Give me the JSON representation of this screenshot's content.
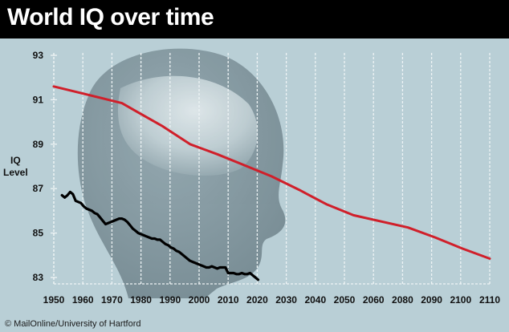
{
  "title": "World IQ over time",
  "credit": "MailOnline/University of Hartford",
  "colors": {
    "background": "#b9cfd6",
    "title_bar": "#000000",
    "projection_line": "#d01f2a",
    "measured_line": "#000000"
  },
  "chart_data": {
    "type": "line",
    "title": "World IQ over time",
    "xlabel": "",
    "ylabel": "IQ Level",
    "xlim": [
      1950,
      2110
    ],
    "ylim": [
      83,
      93
    ],
    "x_tick_labels": [
      "1950",
      "1960",
      "1970",
      "1980",
      "1990",
      "2000",
      "2010",
      "2020",
      "2030",
      "2040",
      "2050",
      "2060",
      "2080",
      "2090",
      "2100",
      "2110"
    ],
    "y_ticks": [
      83,
      85,
      87,
      89,
      91,
      93
    ],
    "grid": true,
    "series": [
      {
        "color": "#d01f2a",
        "points": [
          [
            1950,
            91.6
          ],
          [
            1960,
            91.3
          ],
          [
            1970,
            91.0
          ],
          [
            1975,
            90.85
          ],
          [
            1980,
            90.5
          ],
          [
            1990,
            89.8
          ],
          [
            2000,
            89.0
          ],
          [
            2010,
            88.55
          ],
          [
            2020,
            88.05
          ],
          [
            2030,
            87.55
          ],
          [
            2040,
            86.95
          ],
          [
            2050,
            86.3
          ],
          [
            2060,
            85.8
          ],
          [
            2080,
            85.25
          ],
          [
            2090,
            84.8
          ],
          [
            2100,
            84.3
          ],
          [
            2110,
            83.85
          ]
        ]
      },
      {
        "color": "#000000",
        "points": [
          [
            1953,
            86.7
          ],
          [
            1954,
            86.6
          ],
          [
            1955,
            86.7
          ],
          [
            1956,
            86.85
          ],
          [
            1957,
            86.75
          ],
          [
            1958,
            86.45
          ],
          [
            1959,
            86.4
          ],
          [
            1960,
            86.35
          ],
          [
            1961,
            86.2
          ],
          [
            1962,
            86.1
          ],
          [
            1963,
            86.05
          ],
          [
            1964,
            86.0
          ],
          [
            1965,
            85.9
          ],
          [
            1966,
            85.85
          ],
          [
            1967,
            85.7
          ],
          [
            1968,
            85.55
          ],
          [
            1969,
            85.4
          ],
          [
            1970,
            85.45
          ],
          [
            1971,
            85.5
          ],
          [
            1972,
            85.55
          ],
          [
            1973,
            85.6
          ],
          [
            1974,
            85.65
          ],
          [
            1975,
            85.65
          ],
          [
            1976,
            85.6
          ],
          [
            1977,
            85.5
          ],
          [
            1978,
            85.35
          ],
          [
            1979,
            85.2
          ],
          [
            1980,
            85.1
          ],
          [
            1981,
            85.0
          ],
          [
            1982,
            84.95
          ],
          [
            1983,
            84.9
          ],
          [
            1984,
            84.85
          ],
          [
            1985,
            84.8
          ],
          [
            1986,
            84.75
          ],
          [
            1987,
            84.75
          ],
          [
            1988,
            84.7
          ],
          [
            1989,
            84.7
          ],
          [
            1990,
            84.6
          ],
          [
            1991,
            84.5
          ],
          [
            1992,
            84.45
          ],
          [
            1993,
            84.35
          ],
          [
            1994,
            84.3
          ],
          [
            1995,
            84.2
          ],
          [
            1996,
            84.15
          ],
          [
            1997,
            84.05
          ],
          [
            1998,
            83.95
          ],
          [
            1999,
            83.85
          ],
          [
            2000,
            83.75
          ],
          [
            2001,
            83.7
          ],
          [
            2002,
            83.65
          ],
          [
            2003,
            83.6
          ],
          [
            2004,
            83.55
          ],
          [
            2005,
            83.5
          ],
          [
            2006,
            83.45
          ],
          [
            2007,
            83.45
          ],
          [
            2008,
            83.5
          ],
          [
            2009,
            83.45
          ],
          [
            2010,
            83.4
          ],
          [
            2011,
            83.45
          ],
          [
            2012,
            83.45
          ],
          [
            2013,
            83.45
          ],
          [
            2014,
            83.2
          ],
          [
            2015,
            83.2
          ],
          [
            2016,
            83.2
          ],
          [
            2017,
            83.15
          ],
          [
            2018,
            83.15
          ],
          [
            2019,
            83.2
          ],
          [
            2020,
            83.15
          ],
          [
            2021,
            83.15
          ],
          [
            2022,
            83.2
          ],
          [
            2023,
            83.1
          ],
          [
            2024,
            83.0
          ],
          [
            2025,
            82.9
          ]
        ]
      }
    ]
  }
}
